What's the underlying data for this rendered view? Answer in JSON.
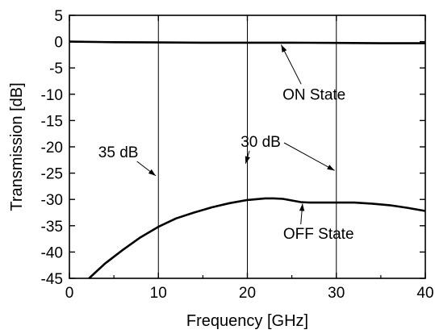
{
  "chart_data": {
    "type": "line",
    "xlabel": "Frequency [GHz]",
    "ylabel": "Transmission [dB]",
    "xlim": [
      0,
      40
    ],
    "ylim": [
      -45,
      5
    ],
    "xticks": [
      0,
      10,
      20,
      30,
      40
    ],
    "yticks": [
      5,
      0,
      -5,
      -10,
      -15,
      -20,
      -25,
      -30,
      -35,
      -40,
      -45
    ],
    "grid": false,
    "series": [
      {
        "name": "ON State",
        "x": [
          0,
          5,
          10,
          15,
          20,
          25,
          30,
          35,
          40
        ],
        "y": [
          0,
          -0.1,
          -0.15,
          -0.2,
          -0.2,
          -0.2,
          -0.25,
          -0.3,
          -0.3
        ]
      },
      {
        "name": "OFF State",
        "x": [
          2.2,
          4,
          6,
          8,
          10,
          12,
          14,
          16,
          18,
          20,
          22,
          23,
          24,
          25,
          26,
          27,
          28,
          30,
          32,
          34,
          36,
          38,
          40
        ],
        "y": [
          -45,
          -42.2,
          -39.6,
          -37.2,
          -35.2,
          -33.6,
          -32.5,
          -31.5,
          -30.7,
          -30.1,
          -29.8,
          -29.8,
          -29.9,
          -30.2,
          -30.5,
          -30.6,
          -30.6,
          -30.6,
          -30.6,
          -30.8,
          -31.1,
          -31.6,
          -32.2
        ]
      }
    ],
    "vlines": [
      10,
      20,
      30
    ],
    "annotations": [
      {
        "text": "ON State",
        "x": 27.5,
        "y": -11,
        "arrow_to": [
          23.8,
          -0.6
        ]
      },
      {
        "text": "30 dB",
        "x": 21.5,
        "y": -20,
        "arrow_to": [
          19.8,
          -23.2
        ],
        "arrow_to2": [
          29.8,
          -24.5
        ]
      },
      {
        "text": "35 dB",
        "x": 5.5,
        "y": -22,
        "arrow_to": [
          9.7,
          -25.5
        ]
      },
      {
        "text": "OFF State",
        "x": 28,
        "y": -37.5,
        "arrow_to": [
          26.2,
          -30.8
        ]
      }
    ]
  }
}
